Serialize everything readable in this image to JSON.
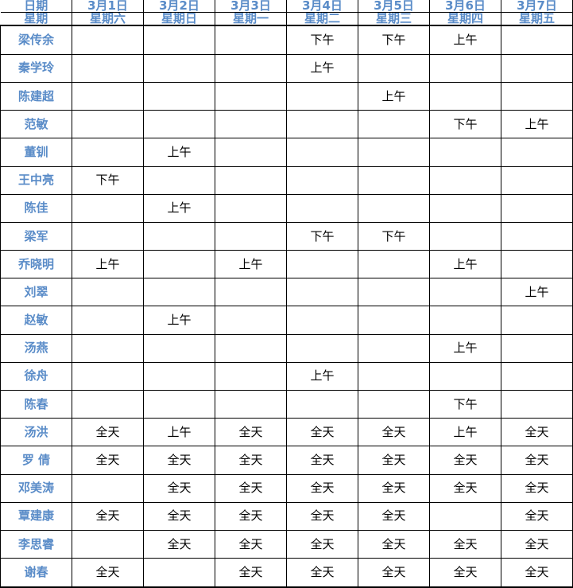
{
  "table": {
    "header_rows": [
      {
        "name": "date-row",
        "cells": [
          "日期",
          "3月1日",
          "3月2日",
          "3月3日",
          "3月4日",
          "3月5日",
          "3月6日",
          "3月7日"
        ]
      },
      {
        "name": "weekday-row",
        "cells": [
          "星期",
          "星期六",
          "星期日",
          "星期一",
          "星期二",
          "星期三",
          "星期四",
          "星期五"
        ]
      }
    ],
    "rows": [
      {
        "name": "梁传余",
        "cells": [
          "",
          "",
          "",
          "下午",
          "下午",
          "上午",
          ""
        ]
      },
      {
        "name": "秦学玲",
        "cells": [
          "",
          "",
          "",
          "上午",
          "",
          "",
          ""
        ]
      },
      {
        "name": "陈建超",
        "cells": [
          "",
          "",
          "",
          "",
          "上午",
          "",
          ""
        ]
      },
      {
        "name": "范敏",
        "cells": [
          "",
          "",
          "",
          "",
          "",
          "下午",
          "上午"
        ]
      },
      {
        "name": "董钏",
        "cells": [
          "",
          "上午",
          "",
          "",
          "",
          "",
          ""
        ]
      },
      {
        "name": "王中亮",
        "cells": [
          "下午",
          "",
          "",
          "",
          "",
          "",
          ""
        ]
      },
      {
        "name": "陈佳",
        "cells": [
          "",
          "上午",
          "",
          "",
          "",
          "",
          ""
        ]
      },
      {
        "name": "梁军",
        "cells": [
          "",
          "",
          "",
          "下午",
          "下午",
          "",
          ""
        ]
      },
      {
        "name": "乔晓明",
        "cells": [
          "上午",
          "",
          "上午",
          "",
          "",
          "上午",
          ""
        ]
      },
      {
        "name": "刘翠",
        "cells": [
          "",
          "",
          "",
          "",
          "",
          "",
          "上午"
        ]
      },
      {
        "name": "赵敏",
        "cells": [
          "",
          "上午",
          "",
          "",
          "",
          "",
          ""
        ]
      },
      {
        "name": "汤燕",
        "cells": [
          "",
          "",
          "",
          "",
          "",
          "上午",
          ""
        ]
      },
      {
        "name": "徐舟",
        "cells": [
          "",
          "",
          "",
          "上午",
          "",
          "",
          ""
        ]
      },
      {
        "name": "陈春",
        "cells": [
          "",
          "",
          "",
          "",
          "",
          "下午",
          ""
        ]
      },
      {
        "name": "汤洪",
        "cells": [
          "全天",
          "上午",
          "全天",
          "全天",
          "全天",
          "上午",
          "全天"
        ]
      },
      {
        "name": "罗 倩",
        "cells": [
          "全天",
          "全天",
          "全天",
          "全天",
          "全天",
          "全天",
          "全天"
        ]
      },
      {
        "name": "邓美涛",
        "cells": [
          "",
          "全天",
          "全天",
          "全天",
          "全天",
          "全天",
          "全天"
        ]
      },
      {
        "name": "覃建康",
        "cells": [
          "全天",
          "全天",
          "全天",
          "全天",
          "全天",
          "",
          "全天"
        ]
      },
      {
        "name": "李思睿",
        "cells": [
          "",
          "全天",
          "全天",
          "全天",
          "全天",
          "全天",
          "全天"
        ]
      },
      {
        "name": "谢春",
        "cells": [
          "全天",
          "",
          "全天",
          "全天",
          "全天",
          "全天",
          "全天"
        ]
      }
    ]
  },
  "colors": {
    "header_text": "#5A8CC8",
    "value_text": "#000000",
    "grid_line": "#000000",
    "background": "#FFFFFF"
  }
}
